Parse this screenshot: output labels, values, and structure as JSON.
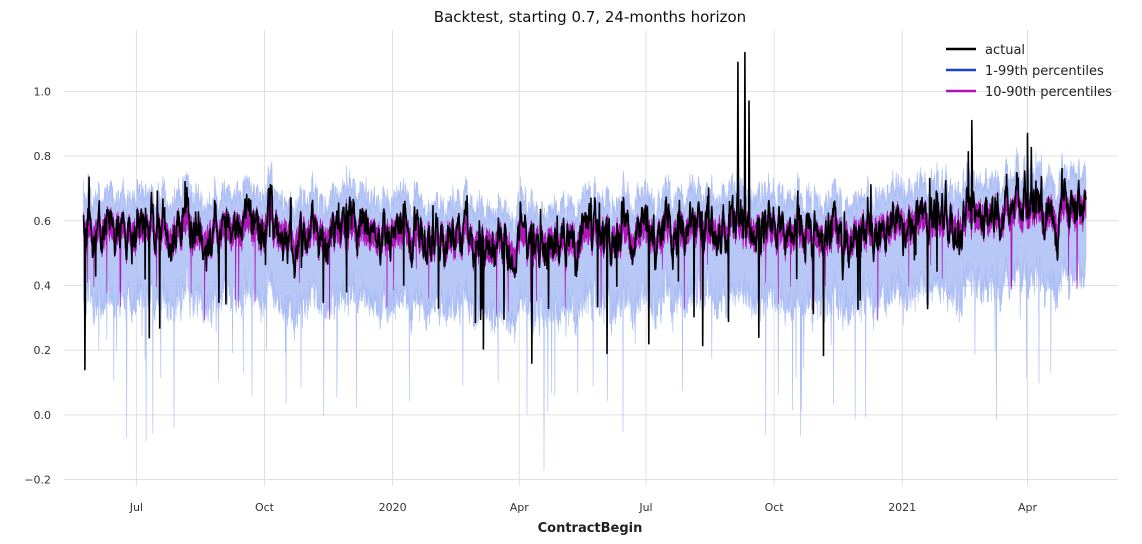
{
  "chart_data": {
    "type": "line",
    "title": "Backtest, starting 0.7, 24-months horizon",
    "xlabel": "ContractBegin",
    "ylabel": "",
    "x_range": [
      "2019-05-24",
      "2021-05-13"
    ],
    "xlim": [
      "2019-05-10",
      "2021-06-05"
    ],
    "ylim": [
      -0.22,
      1.19
    ],
    "y_ticks": [
      {
        "value": -0.2,
        "label": "−0.2"
      },
      {
        "value": 0.0,
        "label": "0.0"
      },
      {
        "value": 0.2,
        "label": "0.2"
      },
      {
        "value": 0.4,
        "label": "0.4"
      },
      {
        "value": 0.6,
        "label": "0.6"
      },
      {
        "value": 0.8,
        "label": "0.8"
      },
      {
        "value": 1.0,
        "label": "1.0"
      }
    ],
    "x_ticks": [
      {
        "date": "2019-07-01",
        "label": "Jul"
      },
      {
        "date": "2019-10-01",
        "label": "Oct"
      },
      {
        "date": "2020-01-01",
        "label": "2020"
      },
      {
        "date": "2020-04-01",
        "label": "Apr"
      },
      {
        "date": "2020-07-01",
        "label": "Jul"
      },
      {
        "date": "2020-10-01",
        "label": "Oct"
      },
      {
        "date": "2021-01-01",
        "label": "2021"
      },
      {
        "date": "2021-04-01",
        "label": "Apr"
      }
    ],
    "grid": true,
    "legend_position": "top-right",
    "colors": {
      "actual": "#000000",
      "band_1_99": "#aabdf5",
      "band_10_90": "#b010b8",
      "legend_1_99": "#1f3fd6"
    },
    "series": [
      {
        "name": "actual",
        "kind": "line"
      },
      {
        "name": "1-99th percentiles",
        "kind": "band",
        "lower": 0.01,
        "upper": 0.99
      },
      {
        "name": "10-90th percentiles",
        "kind": "band",
        "lower": 0.1,
        "upper": 0.9
      }
    ],
    "actual_profile": [
      {
        "date": "2019-05-24",
        "y": 0.58
      },
      {
        "date": "2019-07-15",
        "y": 0.57
      },
      {
        "date": "2019-10-01",
        "y": 0.58
      },
      {
        "date": "2020-01-01",
        "y": 0.56
      },
      {
        "date": "2020-04-01",
        "y": 0.54
      },
      {
        "date": "2020-07-01",
        "y": 0.56
      },
      {
        "date": "2020-09-01",
        "y": 0.59
      },
      {
        "date": "2020-11-01",
        "y": 0.55
      },
      {
        "date": "2021-01-01",
        "y": 0.6
      },
      {
        "date": "2021-05-13",
        "y": 0.64
      }
    ],
    "actual_spikes": [
      {
        "date": "2020-09-05",
        "y": 1.09
      },
      {
        "date": "2020-09-10",
        "y": 1.12
      },
      {
        "date": "2020-09-13",
        "y": 0.97
      },
      {
        "date": "2021-02-20",
        "y": 0.91
      },
      {
        "date": "2021-04-01",
        "y": 0.87
      }
    ],
    "actual_dips": [
      {
        "date": "2019-05-25",
        "y": 0.14
      },
      {
        "date": "2020-04-10",
        "y": 0.16
      },
      {
        "date": "2020-07-03",
        "y": 0.22
      },
      {
        "date": "2020-09-20",
        "y": 0.24
      },
      {
        "date": "2020-06-03",
        "y": 0.19
      }
    ]
  }
}
